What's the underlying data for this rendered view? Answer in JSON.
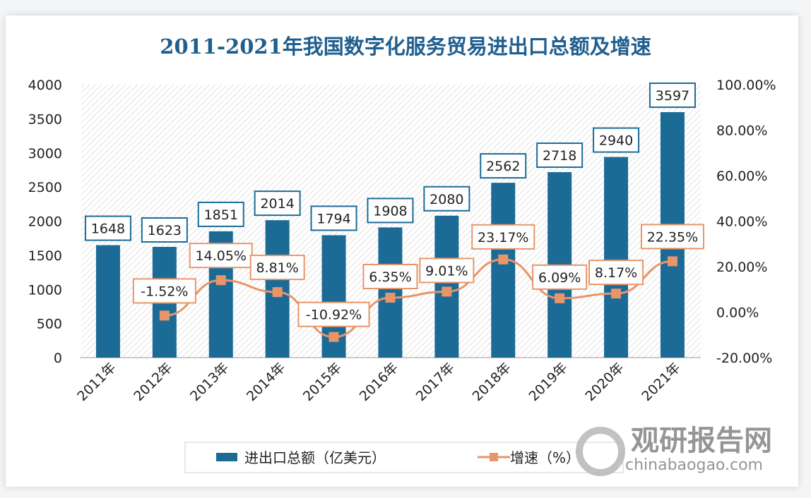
{
  "chart_data": {
    "type": "bar",
    "title": "2011-2021年我国数字化服务贸易进出口总额及增速",
    "categories": [
      "2011年",
      "2012年",
      "2013年",
      "2014年",
      "2015年",
      "2016年",
      "2017年",
      "2018年",
      "2019年",
      "2020年",
      "2021年"
    ],
    "series": [
      {
        "name": "进出口总额（亿美元）",
        "type": "bar",
        "axis": "left",
        "color": "#1c6b96",
        "values": [
          1648,
          1623,
          1851,
          2014,
          1794,
          1908,
          2080,
          2562,
          2718,
          2940,
          3597
        ],
        "labels": [
          "1648",
          "1623",
          "1851",
          "2014",
          "1794",
          "1908",
          "2080",
          "2562",
          "2718",
          "2940",
          "3597"
        ]
      },
      {
        "name": "增速（%）",
        "type": "line",
        "axis": "right",
        "color": "#e8956a",
        "values": [
          null,
          -1.52,
          14.05,
          8.81,
          -10.92,
          6.35,
          9.01,
          23.17,
          6.09,
          8.17,
          22.35
        ],
        "labels": [
          "",
          "-1.52%",
          "14.05%",
          "8.81%",
          "-10.92%",
          "6.35%",
          "9.01%",
          "23.17%",
          "6.09%",
          "8.17%",
          "22.35%"
        ]
      }
    ],
    "y_left": {
      "range": [
        0,
        4000
      ],
      "ticks": [
        "0",
        "500",
        "1000",
        "1500",
        "2000",
        "2500",
        "3000",
        "3500",
        "4000"
      ]
    },
    "y_right": {
      "range": [
        -20,
        100
      ],
      "ticks": [
        "-20.00%",
        "0.00%",
        "20.00%",
        "40.00%",
        "60.00%",
        "80.00%",
        "100.00%"
      ]
    },
    "legend_placement": "bottom",
    "grid": false
  },
  "watermark": {
    "name": "观研报告网",
    "url": "chinabaogao.com"
  }
}
